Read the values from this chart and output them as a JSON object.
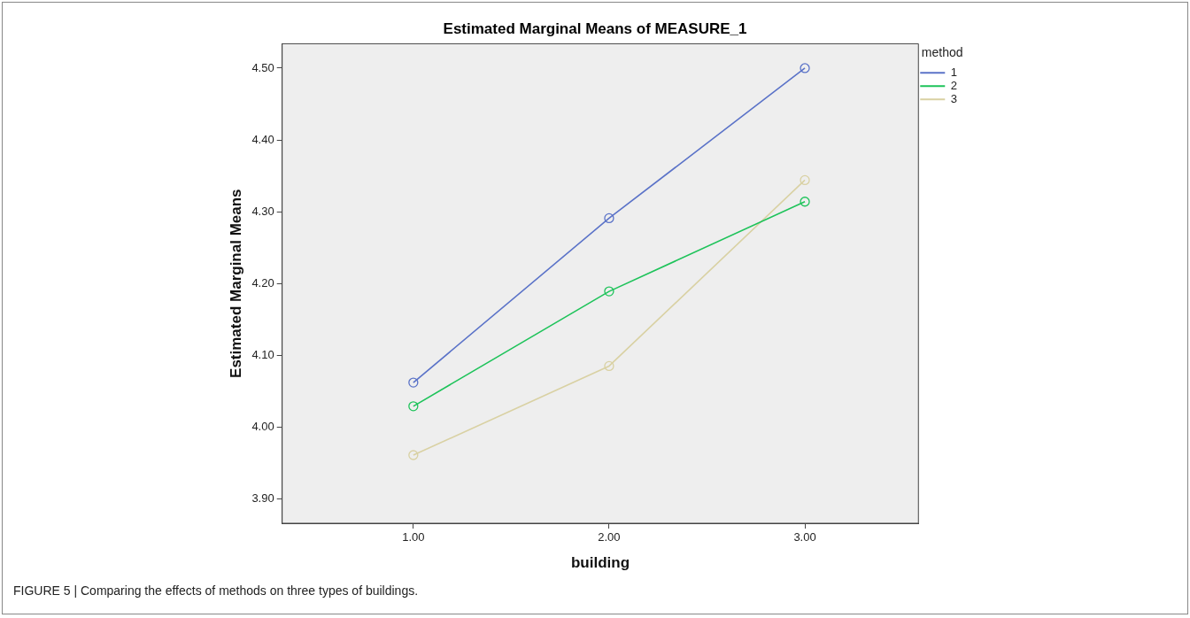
{
  "chart_data": {
    "type": "line",
    "title": "Estimated Marginal Means of MEASURE_1",
    "xlabel": "building",
    "ylabel": "Estimated Marginal Means",
    "legend_title": "method",
    "x": [
      1,
      2,
      3
    ],
    "series": [
      {
        "name": "1",
        "color": "#5b73c8",
        "values": [
          4.062,
          4.291,
          4.5
        ]
      },
      {
        "name": "2",
        "color": "#1ec35a",
        "values": [
          4.029,
          4.189,
          4.314
        ]
      },
      {
        "name": "3",
        "color": "#d9d1a3",
        "values": [
          3.961,
          4.085,
          4.344
        ]
      }
    ],
    "xlim": [
      0.33,
      3.58
    ],
    "xticks": [
      {
        "value": 1,
        "label": "1.00"
      },
      {
        "value": 2,
        "label": "2.00"
      },
      {
        "value": 3,
        "label": "3.00"
      }
    ],
    "ylim": [
      3.866,
      4.534
    ],
    "yticks": [
      {
        "value": 3.9,
        "label": "3.90"
      },
      {
        "value": 4,
        "label": "4.00"
      },
      {
        "value": 4.1,
        "label": "4.10"
      },
      {
        "value": 4.2,
        "label": "4.20"
      },
      {
        "value": 4.3,
        "label": "4.30"
      },
      {
        "value": 4.4,
        "label": "4.40"
      },
      {
        "value": 4.5,
        "label": "4.50"
      }
    ],
    "grid": false,
    "legend": "top right",
    "marker": "circle",
    "line_style": "solid",
    "annotations": [
      "FIGURE 5 | Comparing the effects of methods on three types of buildings."
    ]
  }
}
